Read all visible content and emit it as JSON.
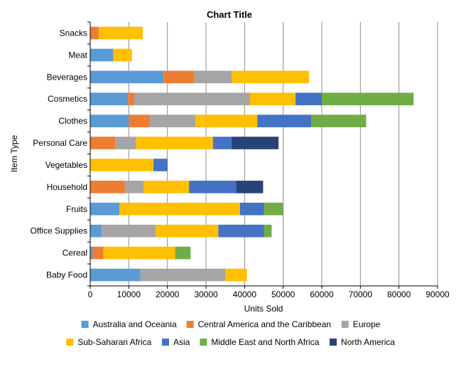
{
  "chart_data": {
    "type": "bar",
    "orientation": "horizontal",
    "stacked": true,
    "title": "Chart Title",
    "xlabel": "Units Sold",
    "ylabel": "Item Type",
    "xlim": [
      0,
      90000
    ],
    "xticks": [
      0,
      10000,
      20000,
      30000,
      40000,
      50000,
      60000,
      70000,
      80000,
      90000
    ],
    "xtick_labels": [
      "0",
      "10000",
      "20000",
      "30000",
      "40000",
      "50000",
      "60000",
      "70000",
      "80000",
      "90000"
    ],
    "grid": "vertical",
    "legend_position": "bottom",
    "categories": [
      "Snacks",
      "Meat",
      "Beverages",
      "Cosmetics",
      "Clothes",
      "Personal Care",
      "Vegetables",
      "Household",
      "Fruits",
      "Office Supplies",
      "Cereal",
      "Baby Food"
    ],
    "series": [
      {
        "name": "Australia and Oceania",
        "color": "#5b9bd5",
        "values": [
          0,
          6000,
          19000,
          9800,
          10000,
          0,
          0,
          0,
          7600,
          3000,
          600,
          13000
        ]
      },
      {
        "name": "Central America and the Caribbean",
        "color": "#ed7d31",
        "values": [
          2200,
          0,
          8000,
          1600,
          5500,
          6500,
          0,
          9000,
          0,
          0,
          2800,
          0
        ]
      },
      {
        "name": "Europe",
        "color": "#a5a5a5",
        "values": [
          0,
          0,
          9700,
          30000,
          11800,
          5400,
          0,
          4800,
          0,
          14000,
          0,
          22000
        ]
      },
      {
        "name": "Sub-Saharan Africa",
        "color": "#ffc000",
        "values": [
          11400,
          4800,
          20000,
          11800,
          16000,
          19900,
          16400,
          11800,
          31200,
          16200,
          18600,
          5600
        ]
      },
      {
        "name": "Asia",
        "color": "#4472c4",
        "values": [
          0,
          0,
          0,
          6800,
          14000,
          4800,
          3600,
          12200,
          6200,
          11800,
          0,
          0
        ]
      },
      {
        "name": "Middle East and North Africa",
        "color": "#70ad47",
        "values": [
          0,
          0,
          0,
          23800,
          14200,
          0,
          0,
          0,
          5000,
          2000,
          4000,
          0
        ]
      },
      {
        "name": "North America",
        "color": "#264478",
        "values": [
          0,
          0,
          0,
          0,
          0,
          12200,
          0,
          7000,
          0,
          0,
          0,
          0
        ]
      }
    ]
  }
}
